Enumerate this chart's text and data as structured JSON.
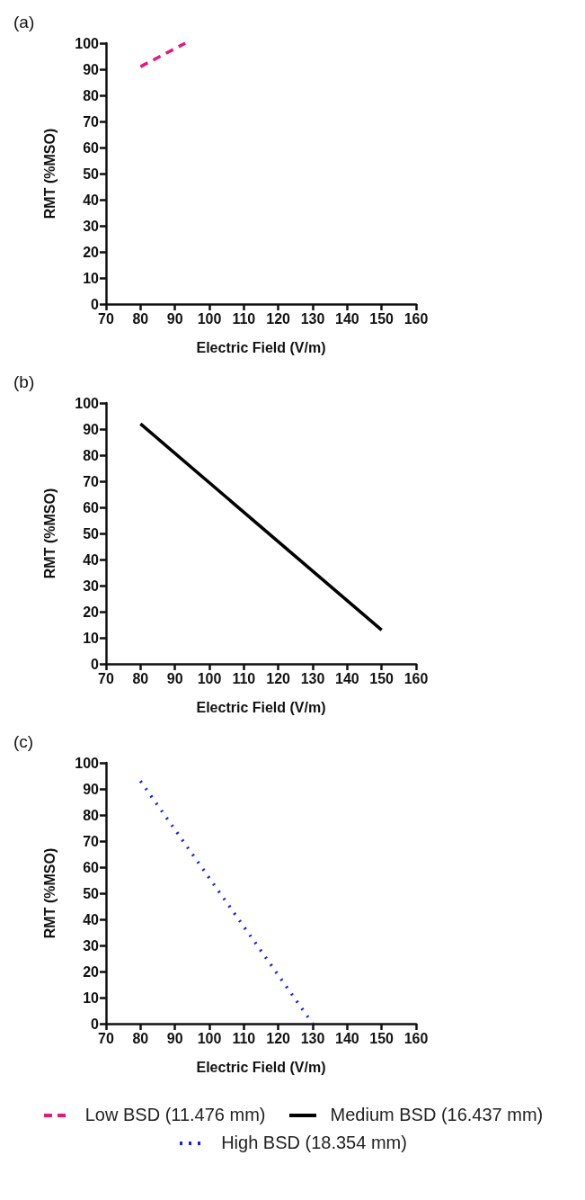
{
  "chart_data": [
    {
      "type": "line",
      "title": "(a)",
      "xlabel": "Electric Field (V/m)",
      "ylabel": "RMT (%MSO)",
      "xlim": [
        70,
        160
      ],
      "xticks": [
        70,
        80,
        90,
        100,
        110,
        120,
        130,
        140,
        150,
        160
      ],
      "ylim": [
        0,
        100
      ],
      "yticks": [
        0,
        10,
        20,
        30,
        40,
        50,
        60,
        70,
        80,
        90,
        100
      ],
      "grid": false,
      "marker": "none",
      "series": [
        {
          "name": "Low BSD (11.476 mm)",
          "color": "#e8177a",
          "line_style": "dashed",
          "x": [
            80,
            93
          ],
          "values": [
            91,
            100
          ]
        }
      ]
    },
    {
      "type": "line",
      "title": "(b)",
      "xlabel": "Electric Field (V/m)",
      "ylabel": "RMT (%MSO)",
      "xlim": [
        70,
        160
      ],
      "xticks": [
        70,
        80,
        90,
        100,
        110,
        120,
        130,
        140,
        150,
        160
      ],
      "ylim": [
        0,
        100
      ],
      "yticks": [
        0,
        10,
        20,
        30,
        40,
        50,
        60,
        70,
        80,
        90,
        100
      ],
      "grid": false,
      "marker": "none",
      "series": [
        {
          "name": "Medium BSD (16.437 mm)",
          "color": "#000000",
          "line_style": "solid",
          "x": [
            80,
            150
          ],
          "values": [
            92,
            13
          ]
        }
      ]
    },
    {
      "type": "line",
      "title": "(c)",
      "xlabel": "Electric Field (V/m)",
      "ylabel": "RMT (%MSO)",
      "xlim": [
        70,
        160
      ],
      "xticks": [
        70,
        80,
        90,
        100,
        110,
        120,
        130,
        140,
        150,
        160
      ],
      "ylim": [
        0,
        100
      ],
      "yticks": [
        0,
        10,
        20,
        30,
        40,
        50,
        60,
        70,
        80,
        90,
        100
      ],
      "grid": false,
      "marker": "none",
      "legend": "bottom",
      "series": [
        {
          "name": "High BSD (18.354 mm)",
          "color": "#1a1aff",
          "line_style": "dotted",
          "x": [
            80,
            130
          ],
          "values": [
            93,
            0
          ]
        }
      ]
    }
  ]
}
